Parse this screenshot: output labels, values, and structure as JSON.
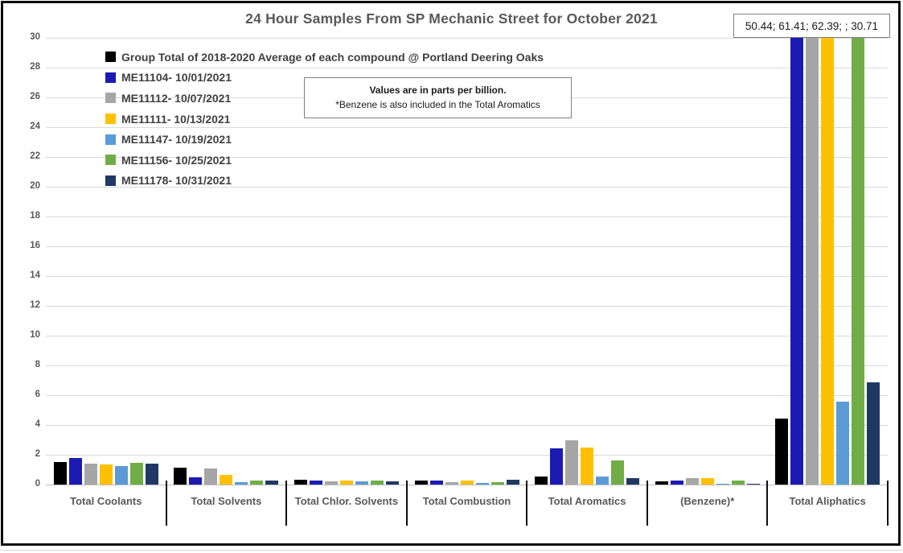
{
  "overflow_box": "50.44; 61.41; 62.39; ; 30.71",
  "note": {
    "line1": "Values are in parts per billion.",
    "line2": "*Benzene is also included in the Total Aromatics"
  },
  "chart_data": {
    "type": "bar",
    "title": "24 Hour Samples From SP Mechanic Street for October 2021",
    "ylabel": "",
    "xlabel": "",
    "units": "parts per billion",
    "ylim": [
      0,
      30
    ],
    "ytick_step": 2,
    "grid": true,
    "legend_position": "top-left",
    "categories": [
      "Total Coolants",
      "Total Solvents",
      "Total Chlor. Solvents",
      "Total Combustion",
      "Total Aromatics",
      "(Benzene)*",
      "Total Aliphatics"
    ],
    "series": [
      {
        "name": "Group Total of 2018-2020 Average of each compound @ Portland Deering Oaks",
        "color": "#000000",
        "values": [
          1.5,
          1.15,
          0.33,
          0.3,
          0.55,
          0.2,
          4.45
        ]
      },
      {
        "name": "ME11104- 10/01/2021",
        "color": "#1b1bb3",
        "values": [
          1.8,
          0.5,
          0.3,
          0.28,
          2.45,
          0.3,
          50.44
        ]
      },
      {
        "name": "ME11112- 10/07/2021",
        "color": "#a6a6a6",
        "values": [
          1.4,
          1.1,
          0.22,
          0.18,
          2.95,
          0.42,
          61.41
        ]
      },
      {
        "name": "ME11111- 10/13/2021",
        "color": "#ffc000",
        "values": [
          1.35,
          0.65,
          0.3,
          0.27,
          2.5,
          0.45,
          62.39
        ]
      },
      {
        "name": "ME11147- 10/19/2021",
        "color": "#5b9bd5",
        "values": [
          1.25,
          0.15,
          0.22,
          0.12,
          0.55,
          0.08,
          5.55
        ]
      },
      {
        "name": "ME11156- 10/25/2021",
        "color": "#70ad47",
        "values": [
          1.45,
          0.27,
          0.28,
          0.15,
          1.6,
          0.25,
          30.71
        ]
      },
      {
        "name": "ME11178- 10/31/2021",
        "color": "#1f3864",
        "values": [
          1.4,
          0.3,
          0.2,
          0.35,
          0.45,
          0.06,
          6.85
        ]
      }
    ],
    "values_clipped_at": 30
  }
}
